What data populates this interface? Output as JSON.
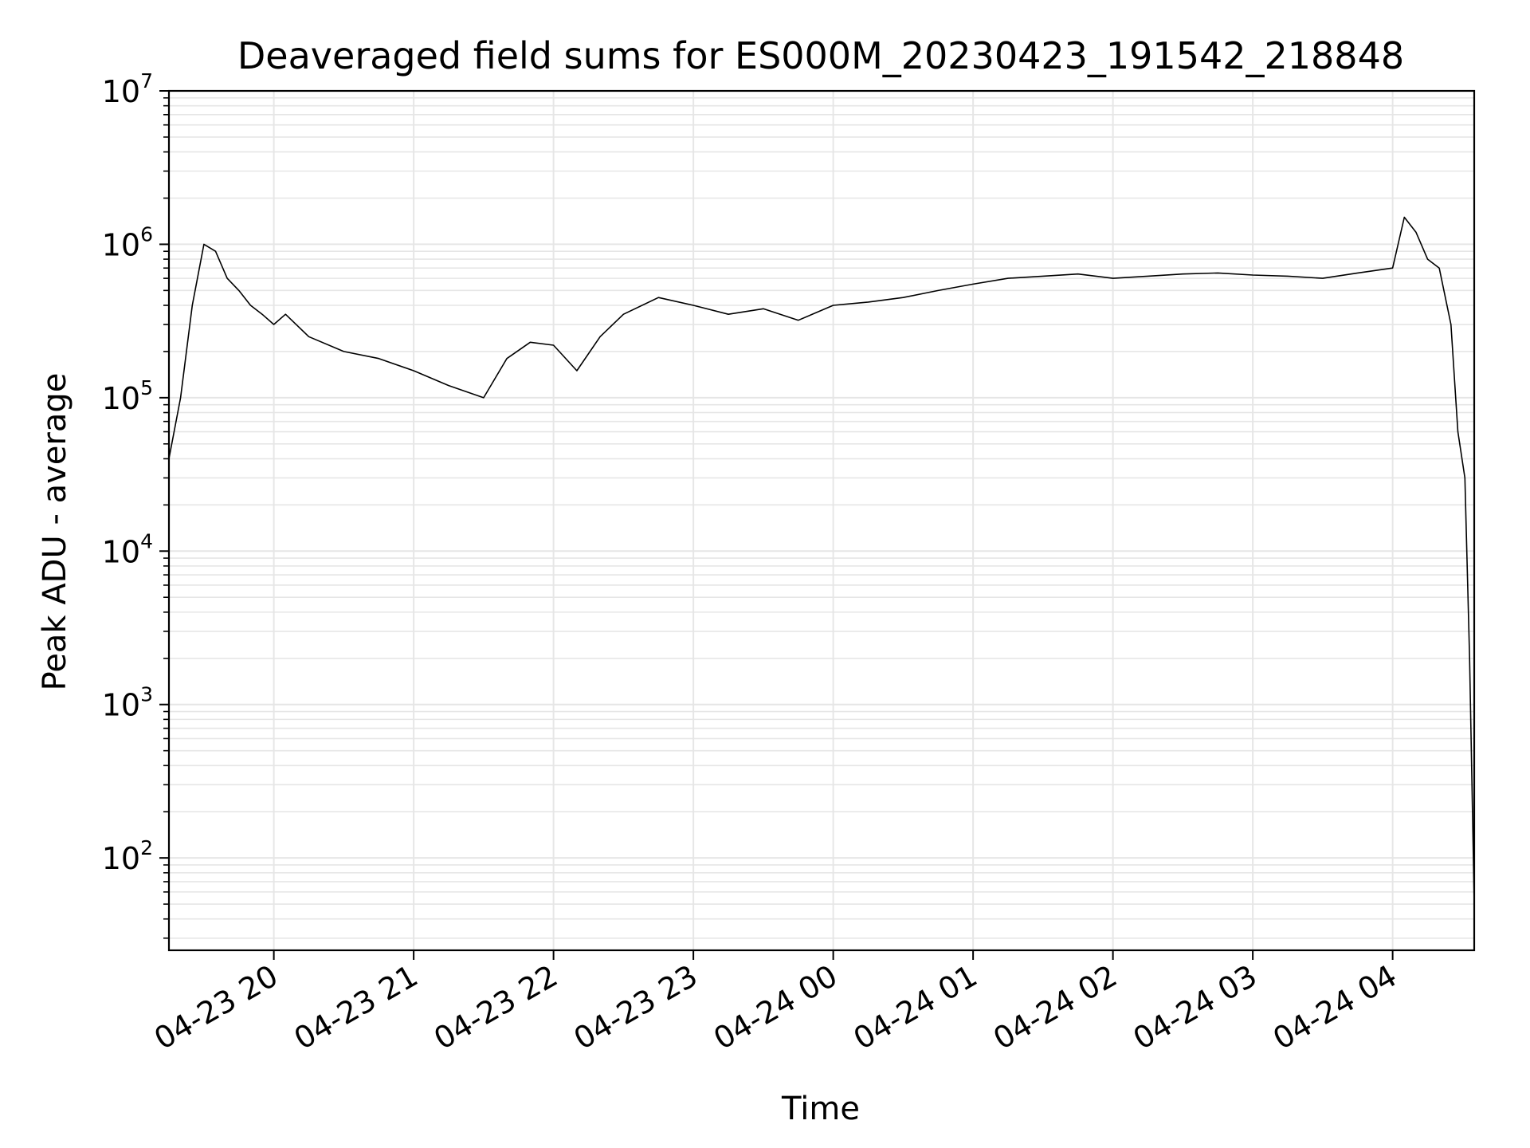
{
  "chart_data": {
    "type": "line",
    "title": "Deaveraged field sums for ES000M_20230423_191542_218848",
    "xlabel": "Time",
    "ylabel": "Peak ADU - average",
    "yscale": "log",
    "ylim": [
      25,
      10000000
    ],
    "xlim": [
      "2023-04-23 19:15",
      "2023-04-24 04:35"
    ],
    "grid": true,
    "line_color": "#000000",
    "grid_color": "#e6e6e6",
    "x_ticks": [
      {
        "value": "2023-04-23 20:00",
        "label": "04-23 20"
      },
      {
        "value": "2023-04-23 21:00",
        "label": "04-23 21"
      },
      {
        "value": "2023-04-23 22:00",
        "label": "04-23 22"
      },
      {
        "value": "2023-04-23 23:00",
        "label": "04-23 23"
      },
      {
        "value": "2023-04-24 00:00",
        "label": "04-24 00"
      },
      {
        "value": "2023-04-24 01:00",
        "label": "04-24 01"
      },
      {
        "value": "2023-04-24 02:00",
        "label": "04-24 02"
      },
      {
        "value": "2023-04-24 03:00",
        "label": "04-24 03"
      },
      {
        "value": "2023-04-24 04:00",
        "label": "04-24 04"
      }
    ],
    "y_ticks": [
      {
        "value": 100,
        "base": "10",
        "exp": "2"
      },
      {
        "value": 1000,
        "base": "10",
        "exp": "3"
      },
      {
        "value": 10000,
        "base": "10",
        "exp": "4"
      },
      {
        "value": 100000,
        "base": "10",
        "exp": "5"
      },
      {
        "value": 1000000,
        "base": "10",
        "exp": "6"
      },
      {
        "value": 10000000,
        "base": "10",
        "exp": "7"
      }
    ],
    "series": [
      {
        "x": [
          "2023-04-23 19:15",
          "2023-04-23 19:20",
          "2023-04-23 19:25",
          "2023-04-23 19:30",
          "2023-04-23 19:35",
          "2023-04-23 19:40",
          "2023-04-23 19:45",
          "2023-04-23 19:50",
          "2023-04-23 19:55",
          "2023-04-23 20:00",
          "2023-04-23 20:05",
          "2023-04-23 20:15",
          "2023-04-23 20:30",
          "2023-04-23 20:45",
          "2023-04-23 21:00",
          "2023-04-23 21:15",
          "2023-04-23 21:30",
          "2023-04-23 21:40",
          "2023-04-23 21:50",
          "2023-04-23 22:00",
          "2023-04-23 22:10",
          "2023-04-23 22:20",
          "2023-04-23 22:30",
          "2023-04-23 22:45",
          "2023-04-23 23:00",
          "2023-04-23 23:15",
          "2023-04-23 23:30",
          "2023-04-23 23:45",
          "2023-04-24 00:00",
          "2023-04-24 00:15",
          "2023-04-24 00:30",
          "2023-04-24 00:45",
          "2023-04-24 01:00",
          "2023-04-24 01:15",
          "2023-04-24 01:30",
          "2023-04-24 01:45",
          "2023-04-24 02:00",
          "2023-04-24 02:15",
          "2023-04-24 02:30",
          "2023-04-24 02:45",
          "2023-04-24 03:00",
          "2023-04-24 03:15",
          "2023-04-24 03:30",
          "2023-04-24 03:45",
          "2023-04-24 04:00",
          "2023-04-24 04:05",
          "2023-04-24 04:10",
          "2023-04-24 04:15",
          "2023-04-24 04:20",
          "2023-04-24 04:25",
          "2023-04-24 04:28",
          "2023-04-24 04:31",
          "2023-04-24 04:33",
          "2023-04-24 04:35"
        ],
        "y": [
          40000,
          100000,
          400000,
          1000000,
          900000,
          600000,
          500000,
          400000,
          350000,
          300000,
          350000,
          250000,
          200000,
          180000,
          150000,
          120000,
          100000,
          180000,
          230000,
          220000,
          150000,
          250000,
          350000,
          450000,
          400000,
          350000,
          380000,
          320000,
          400000,
          420000,
          450000,
          500000,
          550000,
          600000,
          620000,
          640000,
          600000,
          620000,
          640000,
          650000,
          630000,
          620000,
          600000,
          650000,
          700000,
          1500000,
          1200000,
          800000,
          700000,
          300000,
          60000,
          30000,
          2000,
          50
        ]
      }
    ]
  }
}
